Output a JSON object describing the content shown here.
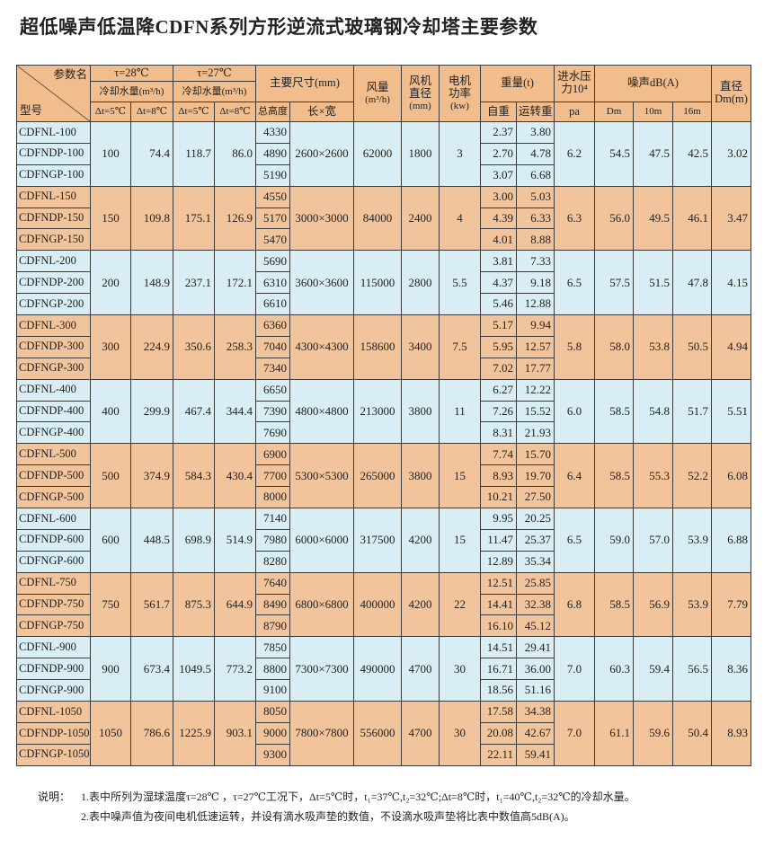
{
  "title": "超低噪声低温降CDFN系列方形逆流式玻璃钢冷却塔主要参数",
  "table": {
    "header": {
      "corner_param": "参数名",
      "corner_model": "型号",
      "t28": "τ=28℃",
      "t28_flow": "冷却水量(m³/h)",
      "t27": "τ=27℃",
      "t27_flow": "冷却水量(m³/h)",
      "dt5_a": "Δt=5℃",
      "dt8_a": "Δt=8℃",
      "dt5_b": "Δt=5℃",
      "dt8_b": "Δt=8℃",
      "size": "主要尺寸(mm)",
      "height": "总高度",
      "lw": "长×宽",
      "air": [
        "风量",
        "(m³/h)"
      ],
      "fan": [
        "风机",
        "直径",
        "(mm)"
      ],
      "motor": [
        "电机",
        "功率",
        "(kw)"
      ],
      "weight": "重量(t)",
      "self_weight": "自重",
      "run_weight": "运转重",
      "pressure": [
        "进水压",
        "力10⁴"
      ],
      "pa": "pa",
      "noise": "噪声dB(A)",
      "dm": "Dm",
      "m10": "10m",
      "m16": "16m",
      "dia": [
        "直径",
        "Dm(m)"
      ]
    },
    "groups": [
      {
        "models": [
          "CDFNL-100",
          "CDFNDP-100",
          "CDFNGP-100"
        ],
        "f28_5": "100",
        "f28_8": "74.4",
        "f27_5": "118.7",
        "f27_8": "86.0",
        "heights": [
          "4330",
          "4890",
          "5190"
        ],
        "lw": "2600×2600",
        "air": "62000",
        "fan": "1800",
        "motor": "3",
        "self": [
          "2.37",
          "2.70",
          "3.07"
        ],
        "run": [
          "3.80",
          "4.78",
          "6.68"
        ],
        "pressure": "6.2",
        "dm": "54.5",
        "m10": "47.5",
        "m16": "42.5",
        "dia": "3.02"
      },
      {
        "models": [
          "CDFNL-150",
          "CDFNDP-150",
          "CDFNGP-150"
        ],
        "f28_5": "150",
        "f28_8": "109.8",
        "f27_5": "175.1",
        "f27_8": "126.9",
        "heights": [
          "4550",
          "5170",
          "5470"
        ],
        "lw": "3000×3000",
        "air": "84000",
        "fan": "2400",
        "motor": "4",
        "self": [
          "3.00",
          "4.39",
          "4.01"
        ],
        "run": [
          "5.03",
          "6.33",
          "8.88"
        ],
        "pressure": "6.3",
        "dm": "56.0",
        "m10": "49.5",
        "m16": "46.1",
        "dia": "3.47"
      },
      {
        "models": [
          "CDFNL-200",
          "CDFNDP-200",
          "CDFNGP-200"
        ],
        "f28_5": "200",
        "f28_8": "148.9",
        "f27_5": "237.1",
        "f27_8": "172.1",
        "heights": [
          "5690",
          "6310",
          "6610"
        ],
        "lw": "3600×3600",
        "air": "115000",
        "fan": "2800",
        "motor": "5.5",
        "self": [
          "3.81",
          "4.37",
          "5.46"
        ],
        "run": [
          "7.33",
          "9.18",
          "12.88"
        ],
        "pressure": "6.5",
        "dm": "57.5",
        "m10": "51.5",
        "m16": "47.8",
        "dia": "4.15"
      },
      {
        "models": [
          "CDFNL-300",
          "CDFNDP-300",
          "CDFNGP-300"
        ],
        "f28_5": "300",
        "f28_8": "224.9",
        "f27_5": "350.6",
        "f27_8": "258.3",
        "heights": [
          "6360",
          "7040",
          "7340"
        ],
        "lw": "4300×4300",
        "air": "158600",
        "fan": "3400",
        "motor": "7.5",
        "self": [
          "5.17",
          "5.95",
          "7.02"
        ],
        "run": [
          "9.94",
          "12.57",
          "17.77"
        ],
        "pressure": "5.8",
        "dm": "58.0",
        "m10": "53.8",
        "m16": "50.5",
        "dia": "4.94"
      },
      {
        "models": [
          "CDFNL-400",
          "CDFNDP-400",
          "CDFNGP-400"
        ],
        "f28_5": "400",
        "f28_8": "299.9",
        "f27_5": "467.4",
        "f27_8": "344.4",
        "heights": [
          "6650",
          "7390",
          "7690"
        ],
        "lw": "4800×4800",
        "air": "213000",
        "fan": "3800",
        "motor": "11",
        "self": [
          "6.27",
          "7.26",
          "8.31"
        ],
        "run": [
          "12.22",
          "15.52",
          "21.93"
        ],
        "pressure": "6.0",
        "dm": "58.5",
        "m10": "54.8",
        "m16": "51.7",
        "dia": "5.51"
      },
      {
        "models": [
          "CDFNL-500",
          "CDFNDP-500",
          "CDFNGP-500"
        ],
        "f28_5": "500",
        "f28_8": "374.9",
        "f27_5": "584.3",
        "f27_8": "430.4",
        "heights": [
          "6900",
          "7700",
          "8000"
        ],
        "lw": "5300×5300",
        "air": "265000",
        "fan": "3800",
        "motor": "15",
        "self": [
          "7.74",
          "8.93",
          "10.21"
        ],
        "run": [
          "15.70",
          "19.70",
          "27.50"
        ],
        "pressure": "6.4",
        "dm": "58.5",
        "m10": "55.3",
        "m16": "52.2",
        "dia": "6.08"
      },
      {
        "models": [
          "CDFNL-600",
          "CDFNDP-600",
          "CDFNGP-600"
        ],
        "f28_5": "600",
        "f28_8": "448.5",
        "f27_5": "698.9",
        "f27_8": "514.9",
        "heights": [
          "7140",
          "7980",
          "8280"
        ],
        "lw": "6000×6000",
        "air": "317500",
        "fan": "4200",
        "motor": "15",
        "self": [
          "9.95",
          "11.47",
          "12.89"
        ],
        "run": [
          "20.25",
          "25.37",
          "35.34"
        ],
        "pressure": "6.5",
        "dm": "59.0",
        "m10": "57.0",
        "m16": "53.9",
        "dia": "6.88"
      },
      {
        "models": [
          "CDFNL-750",
          "CDFNDP-750",
          "CDFNGP-750"
        ],
        "f28_5": "750",
        "f28_8": "561.7",
        "f27_5": "875.3",
        "f27_8": "644.9",
        "heights": [
          "7640",
          "8490",
          "8790"
        ],
        "lw": "6800×6800",
        "air": "400000",
        "fan": "4200",
        "motor": "22",
        "self": [
          "12.51",
          "14.41",
          "16.10"
        ],
        "run": [
          "25.85",
          "32.38",
          "45.12"
        ],
        "pressure": "6.8",
        "dm": "58.5",
        "m10": "56.9",
        "m16": "53.9",
        "dia": "7.79"
      },
      {
        "models": [
          "CDFNL-900",
          "CDFNDP-900",
          "CDFNGP-900"
        ],
        "f28_5": "900",
        "f28_8": "673.4",
        "f27_5": "1049.5",
        "f27_8": "773.2",
        "heights": [
          "7850",
          "8800",
          "9100"
        ],
        "lw": "7300×7300",
        "air": "490000",
        "fan": "4700",
        "motor": "30",
        "self": [
          "14.51",
          "16.71",
          "18.56"
        ],
        "run": [
          "29.41",
          "36.00",
          "51.16"
        ],
        "pressure": "7.0",
        "dm": "60.3",
        "m10": "59.4",
        "m16": "56.5",
        "dia": "8.36"
      },
      {
        "models": [
          "CDFNL-1050",
          "CDFNDP-1050",
          "CDFNGP-1050"
        ],
        "f28_5": "1050",
        "f28_8": "786.6",
        "f27_5": "1225.9",
        "f27_8": "903.1",
        "heights": [
          "8050",
          "9000",
          "9300"
        ],
        "lw": "7800×7800",
        "air": "556000",
        "fan": "4700",
        "motor": "30",
        "self": [
          "17.58",
          "20.08",
          "22.11"
        ],
        "run": [
          "34.38",
          "42.67",
          "59.41"
        ],
        "pressure": "7.0",
        "dm": "61.1",
        "m10": "59.6",
        "m16": "50.4",
        "dia": "8.93"
      }
    ]
  },
  "notes": {
    "label": "说明：",
    "lines": [
      "1.表中所列为湿球温度τ=28℃ ，τ=27℃工况下，Δt=5℃时，t₁=37℃,t₂=32℃;Δt=8℃时，t₁=40℃,t₂=32℃的冷却水量。",
      "2.表中噪声值为夜间电机低速运转，并设有滴水吸声垫的数值，不设滴水吸声垫将比表中数值高5dB(A)。"
    ]
  }
}
